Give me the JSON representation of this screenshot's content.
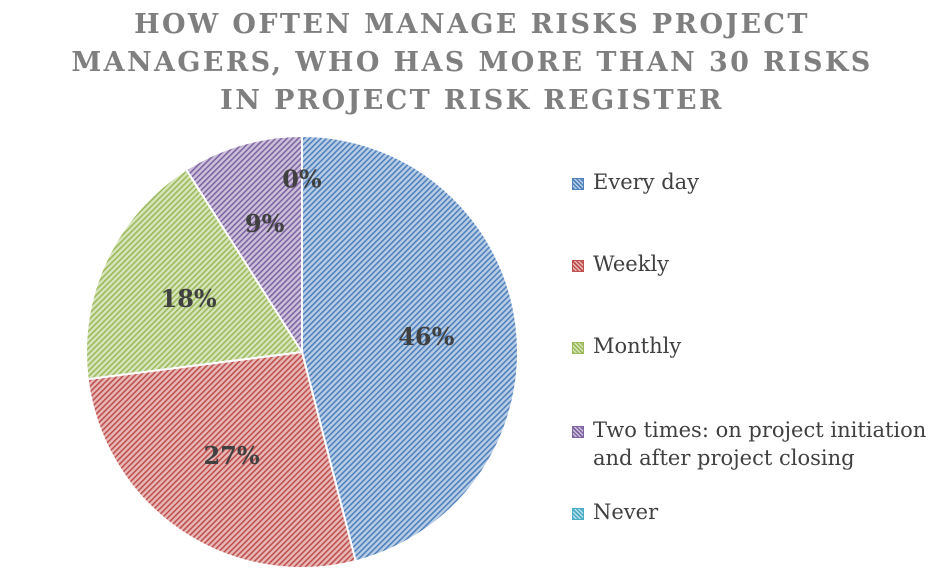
{
  "chart_data": {
    "type": "pie",
    "title_lines": [
      "HOW OFTEN MANAGE RISKS PROJECT",
      "MANAGERS, WHO HAS MORE THAN 30 RISKS",
      "IN PROJECT RISK REGISTER"
    ],
    "categories": [
      "Every day",
      "Weekly",
      "Monthly",
      "Two times: on project initiation and after project closing",
      "Never"
    ],
    "values": [
      46,
      27,
      18,
      9,
      0
    ],
    "data_labels": [
      "46%",
      "27%",
      "18%",
      "9%",
      "0%"
    ],
    "unit": "%",
    "colors": [
      "#4f81bd",
      "#c0504d",
      "#9bbb59",
      "#8064a2",
      "#4bacc6"
    ],
    "fill_pattern": "diagonal-hatch",
    "legend_position": "right"
  }
}
